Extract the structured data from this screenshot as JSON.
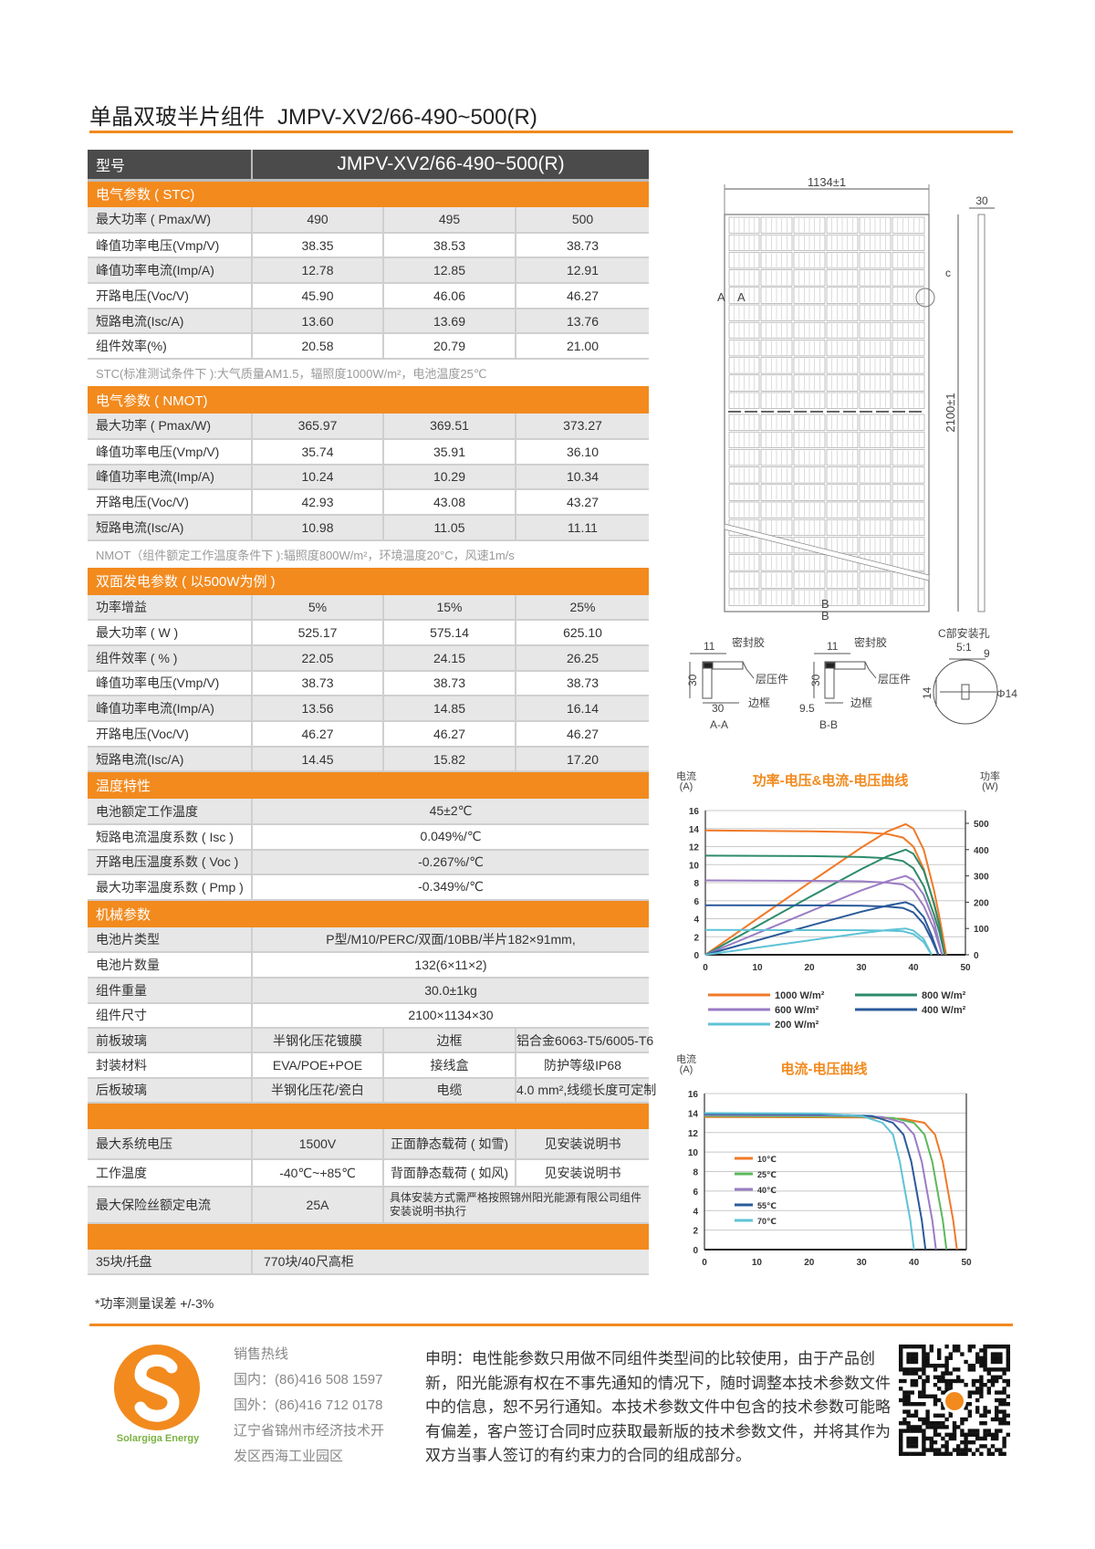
{
  "title": {
    "cn": "单晶双玻半片组件",
    "model": "JMPV-XV2/66-490~500(R)"
  },
  "spec_table": {
    "model_label": "型号",
    "model_value": "JMPV-XV2/66-490~500(R)",
    "blocks": [
      {
        "type": "header",
        "label": "电气参数 ( STC)"
      },
      {
        "type": "rows3",
        "rows": [
          {
            "label": "最大功率 ( Pmax/W)",
            "values": [
              "490",
              "495",
              "500"
            ]
          },
          {
            "label": "峰值功率电压(Vmp/V)",
            "values": [
              "38.35",
              "38.53",
              "38.73"
            ]
          },
          {
            "label": "峰值功率电流(Imp/A)",
            "values": [
              "12.78",
              "12.85",
              "12.91"
            ]
          },
          {
            "label": "开路电压(Voc/V)",
            "values": [
              "45.90",
              "46.06",
              "46.27"
            ]
          },
          {
            "label": "短路电流(Isc/A)",
            "values": [
              "13.60",
              "13.69",
              "13.76"
            ]
          },
          {
            "label": "组件效率(%)",
            "values": [
              "20.58",
              "20.79",
              "21.00"
            ]
          }
        ]
      },
      {
        "type": "note",
        "text": "STC(标准测试条件下 ):大气质量AM1.5，辐照度1000W/m²，电池温度25℃"
      },
      {
        "type": "header",
        "label": "电气参数 ( NMOT)"
      },
      {
        "type": "rows3",
        "rows": [
          {
            "label": "最大功率 ( Pmax/W)",
            "values": [
              "365.97",
              "369.51",
              "373.27"
            ]
          },
          {
            "label": "峰值功率电压(Vmp/V)",
            "values": [
              "35.74",
              "35.91",
              "36.10"
            ]
          },
          {
            "label": "峰值功率电流(Imp/A)",
            "values": [
              "10.24",
              "10.29",
              "10.34"
            ]
          },
          {
            "label": "开路电压(Voc/V)",
            "values": [
              "42.93",
              "43.08",
              "43.27"
            ]
          },
          {
            "label": "短路电流(Isc/A)",
            "values": [
              "10.98",
              "11.05",
              "11.11"
            ]
          }
        ]
      },
      {
        "type": "note",
        "text": "NMOT（组件额定工作温度条件下 ):辐照度800W/m²，环境温度20°C，风速1m/s"
      },
      {
        "type": "header",
        "label": "双面发电参数 ( 以500W为例 )"
      },
      {
        "type": "rows3",
        "rows": [
          {
            "label": "功率增益",
            "values": [
              "5%",
              "15%",
              "25%"
            ]
          },
          {
            "label": "最大功率 ( W )",
            "values": [
              "525.17",
              "575.14",
              "625.10"
            ]
          },
          {
            "label": "组件效率 ( % )",
            "values": [
              "22.05",
              "24.15",
              "26.25"
            ]
          },
          {
            "label": "峰值功率电压(Vmp/V)",
            "values": [
              "38.73",
              "38.73",
              "38.73"
            ]
          },
          {
            "label": "峰值功率电流(Imp/A)",
            "values": [
              "13.56",
              "14.85",
              "16.14"
            ]
          },
          {
            "label": "开路电压(Voc/V)",
            "values": [
              "46.27",
              "46.27",
              "46.27"
            ]
          },
          {
            "label": "短路电流(Isc/A)",
            "values": [
              "14.45",
              "15.82",
              "17.20"
            ]
          }
        ]
      },
      {
        "type": "header",
        "label": "温度特性"
      },
      {
        "type": "rows1",
        "rows": [
          {
            "label": "电池额定工作温度",
            "value": "45±2℃"
          },
          {
            "label": "短路电流温度系数 ( Isc )",
            "value": "0.049%/℃"
          },
          {
            "label": "开路电压温度系数 ( Voc )",
            "value": "-0.267%/℃"
          },
          {
            "label": "最大功率温度系数 ( Pmp )",
            "value": "-0.349%/℃"
          }
        ]
      },
      {
        "type": "header",
        "label": "机械参数"
      },
      {
        "type": "rows1",
        "rows": [
          {
            "label": "电池片类型",
            "value": "P型/M10/PERC/双面/10BB/半片182×91mm,"
          },
          {
            "label": "电池片数量",
            "value": "132(6×11×2)"
          },
          {
            "label": "组件重量",
            "value": "30.0±1kg"
          },
          {
            "label": "组件尺寸",
            "value": "2100×1134×30"
          }
        ]
      },
      {
        "type": "rows4",
        "rows": [
          {
            "label": "前板玻璃",
            "value": "半钢化压花镀膜",
            "label2": "边框",
            "value2": "铝合金6063-T5/6005-T6"
          },
          {
            "label": "封装材料",
            "value": "EVA/POE+POE",
            "label2": "接线盒",
            "value2": "防护等级IP68"
          },
          {
            "label": "后板玻璃",
            "value": "半钢化压花/瓷白",
            "label2": "电缆",
            "value2": "4.0 mm²,线缆长度可定制"
          }
        ]
      },
      {
        "type": "header",
        "label": ""
      },
      {
        "type": "rows4",
        "rows": [
          {
            "label": "最大系统电压",
            "value": "1500V",
            "label2": "正面静态载荷 ( 如雪)",
            "value2": "见安装说明书"
          },
          {
            "label": "工作温度",
            "value": "-40℃~+85℃",
            "label2": "背面静态载荷 ( 如风)",
            "value2": "见安装说明书"
          },
          {
            "label": "最大保险丝额定电流",
            "value": "25A",
            "merged": "具体安装方式需严格按照锦州阳光能源有限公司组件安装说明书执行"
          }
        ]
      },
      {
        "type": "header",
        "label": ""
      },
      {
        "type": "rows2",
        "rows": [
          {
            "label": "35块/托盘",
            "value": "770块/40尺高柜"
          }
        ]
      }
    ]
  },
  "footnote": "*功率测量误差  +/-3%",
  "drawing": {
    "width_dim": "1134±1",
    "height_dim": "2100±1",
    "thickness_dim": "30",
    "section_a": "A",
    "section_b": "B",
    "detail_c": "c",
    "aa": {
      "w_top": "11",
      "sealant": "密封胶",
      "h": "30",
      "laminate": "层压件",
      "frame": "边框",
      "w_bottom": "30",
      "caption": "A-A"
    },
    "bb": {
      "w_top": "11",
      "sealant": "密封胶",
      "h": "30",
      "laminate": "层压件",
      "frame": "边框",
      "w_bottom": "9.5",
      "caption": "B-B"
    },
    "c_detail": {
      "title": "C部安装孔",
      "scale": "5:1",
      "w": "9",
      "h": "14",
      "dia": "Φ14"
    }
  },
  "chart_data": [
    {
      "type": "line",
      "title": "功率-电压&电流-电压曲线",
      "ylabel": "电流\n(A)",
      "y2label": "功率\n(W)",
      "xlim": [
        0,
        50
      ],
      "ylim": [
        0,
        16
      ],
      "y2lim": [
        0,
        550
      ],
      "xticks": [
        0,
        10,
        20,
        30,
        40,
        50
      ],
      "yticks": [
        0,
        2,
        4,
        6,
        8,
        10,
        12,
        14,
        16
      ],
      "y2ticks": [
        0,
        100,
        200,
        300,
        400,
        500
      ],
      "grid": true,
      "legend": "bottom",
      "series": [
        {
          "name": "1000 W/m²",
          "color": "#f07a28",
          "iv": [
            [
              0,
              13.8
            ],
            [
              10,
              13.75
            ],
            [
              20,
              13.7
            ],
            [
              30,
              13.6
            ],
            [
              35,
              13.4
            ],
            [
              38,
              13.0
            ],
            [
              40,
              12.0
            ],
            [
              42,
              9.5
            ],
            [
              44,
              5.5
            ],
            [
              45,
              3.2
            ],
            [
              46.3,
              0
            ]
          ],
          "pv": [
            [
              0,
              0
            ],
            [
              10,
              137
            ],
            [
              20,
              274
            ],
            [
              30,
              408
            ],
            [
              35,
              469
            ],
            [
              38.5,
              497
            ],
            [
              40,
              480
            ],
            [
              42,
              399
            ],
            [
              44,
              242
            ],
            [
              45,
              144
            ],
            [
              46.3,
              0
            ]
          ]
        },
        {
          "name": "800 W/m²",
          "color": "#2e8b6a",
          "iv": [
            [
              0,
              11
            ],
            [
              20,
              10.95
            ],
            [
              30,
              10.85
            ],
            [
              35,
              10.7
            ],
            [
              38,
              10.4
            ],
            [
              40,
              9.6
            ],
            [
              42,
              7.6
            ],
            [
              44,
              4.4
            ],
            [
              45,
              2.5
            ],
            [
              46,
              0
            ]
          ],
          "pv": [
            [
              0,
              0
            ],
            [
              20,
              219
            ],
            [
              30,
              326
            ],
            [
              35,
              375
            ],
            [
              38.5,
              400
            ],
            [
              40,
              384
            ],
            [
              42,
              319
            ],
            [
              44,
              194
            ],
            [
              45,
              113
            ],
            [
              46,
              0
            ]
          ]
        },
        {
          "name": "600 W/m²",
          "color": "#9a7cc4",
          "iv": [
            [
              0,
              8.25
            ],
            [
              20,
              8.2
            ],
            [
              30,
              8.15
            ],
            [
              35,
              8.0
            ],
            [
              38,
              7.8
            ],
            [
              40,
              7.1
            ],
            [
              42,
              5.4
            ],
            [
              44,
              2.8
            ],
            [
              45.5,
              0
            ]
          ],
          "pv": [
            [
              0,
              0
            ],
            [
              20,
              164
            ],
            [
              30,
              245
            ],
            [
              35,
              280
            ],
            [
              38.5,
              300
            ],
            [
              40,
              284
            ],
            [
              42,
              227
            ],
            [
              44,
              123
            ],
            [
              45.5,
              0
            ]
          ]
        },
        {
          "name": "400 W/m²",
          "color": "#2a5a9a",
          "iv": [
            [
              0,
              5.5
            ],
            [
              20,
              5.48
            ],
            [
              30,
              5.45
            ],
            [
              35,
              5.35
            ],
            [
              38,
              5.2
            ],
            [
              40,
              4.7
            ],
            [
              42,
              3.4
            ],
            [
              43.5,
              1.7
            ],
            [
              44.8,
              0
            ]
          ],
          "pv": [
            [
              0,
              0
            ],
            [
              20,
              110
            ],
            [
              30,
              164
            ],
            [
              35,
              187
            ],
            [
              38.5,
              200
            ],
            [
              40,
              188
            ],
            [
              42,
              143
            ],
            [
              43.5,
              74
            ],
            [
              44.8,
              0
            ]
          ]
        },
        {
          "name": "200 W/m²",
          "color": "#5ec3d6",
          "iv": [
            [
              0,
              2.75
            ],
            [
              20,
              2.73
            ],
            [
              30,
              2.72
            ],
            [
              35,
              2.68
            ],
            [
              38,
              2.6
            ],
            [
              40,
              2.3
            ],
            [
              42,
              1.4
            ],
            [
              43.5,
              0
            ]
          ],
          "pv": [
            [
              0,
              0
            ],
            [
              20,
              55
            ],
            [
              30,
              82
            ],
            [
              35,
              94
            ],
            [
              38.5,
              100
            ],
            [
              40,
              92
            ],
            [
              42,
              59
            ],
            [
              43.5,
              0
            ]
          ]
        }
      ]
    },
    {
      "type": "line",
      "title": "电流-电压曲线",
      "ylabel": "电流\n(A)",
      "xlim": [
        0,
        50
      ],
      "ylim": [
        0,
        16
      ],
      "xticks": [
        0,
        10,
        20,
        30,
        40,
        50
      ],
      "yticks": [
        0,
        2,
        4,
        6,
        8,
        10,
        12,
        14,
        16
      ],
      "grid": true,
      "legend": "inside-left",
      "series": [
        {
          "name": "10℃",
          "color": "#f07a28",
          "iv": [
            [
              0,
              13.6
            ],
            [
              30,
              13.55
            ],
            [
              38,
              13.4
            ],
            [
              42,
              13.0
            ],
            [
              44,
              11.8
            ],
            [
              45.5,
              9
            ],
            [
              46.5,
              6
            ],
            [
              47.5,
              3
            ],
            [
              48.2,
              0
            ]
          ]
        },
        {
          "name": "25℃",
          "color": "#5cb85c",
          "iv": [
            [
              0,
              13.7
            ],
            [
              28,
              13.65
            ],
            [
              36,
              13.5
            ],
            [
              40,
              13.0
            ],
            [
              42,
              11.8
            ],
            [
              43.5,
              9
            ],
            [
              44.5,
              6
            ],
            [
              45.5,
              3
            ],
            [
              46.2,
              0
            ]
          ]
        },
        {
          "name": "40℃",
          "color": "#9a7cc4",
          "iv": [
            [
              0,
              13.8
            ],
            [
              26,
              13.75
            ],
            [
              34,
              13.6
            ],
            [
              38,
              13.0
            ],
            [
              40,
              11.8
            ],
            [
              41.5,
              9
            ],
            [
              42.5,
              6
            ],
            [
              43.5,
              3
            ],
            [
              44.2,
              0
            ]
          ]
        },
        {
          "name": "55℃",
          "color": "#2a5a9a",
          "iv": [
            [
              0,
              13.9
            ],
            [
              24,
              13.85
            ],
            [
              32,
              13.7
            ],
            [
              36,
              13.0
            ],
            [
              38,
              11.8
            ],
            [
              39.5,
              9
            ],
            [
              40.5,
              6
            ],
            [
              41.5,
              3
            ],
            [
              42.2,
              0
            ]
          ]
        },
        {
          "name": "70℃",
          "color": "#5ec3d6",
          "iv": [
            [
              0,
              14.0
            ],
            [
              22,
              13.95
            ],
            [
              30,
              13.7
            ],
            [
              34,
              13.0
            ],
            [
              36,
              11.8
            ],
            [
              37.3,
              9
            ],
            [
              38.3,
              6
            ],
            [
              39.3,
              3
            ],
            [
              40,
              0
            ]
          ]
        }
      ]
    }
  ],
  "footer": {
    "brand": "Solargiga Energy",
    "logo_letter": "S",
    "hotline_title": "销售热线",
    "domestic": "国内：(86)416 508 1597",
    "international": "国外：(86)416 712 0178",
    "address_lines": [
      "辽宁省锦州市经济技术开",
      "发区西海工业园区"
    ],
    "disclaimer_lines": [
      "申明：电性能参数只用做不同组件类型间的比较使用，由于产品创",
      "新，阳光能源有权在不事先通知的情况下，随时调整本技术参数文件",
      "中的信息，恕不另行通知。本技术参数文件中包含的技术参数可能略",
      "有偏差，客户签订合同时应获取最新版的技术参数文件，并将其作为",
      "双方当事人签订的有约束力的合同的组成部分。"
    ]
  },
  "colors": {
    "accent": "#f28a1e",
    "header_dark": "#4b4b4b",
    "row_gray": "#e7e7e7",
    "brand_green": "#7ab241"
  }
}
